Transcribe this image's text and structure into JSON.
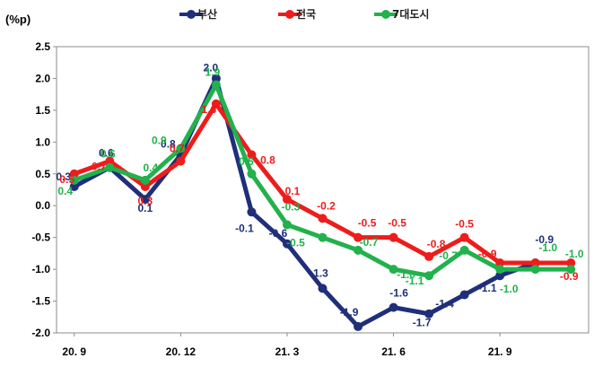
{
  "chart_data": {
    "type": "line",
    "unit_label": "(%p)",
    "x": [
      "20.9",
      "20.10",
      "20.11",
      "20.12",
      "21.1",
      "21.2",
      "21.3",
      "21.4",
      "21.5",
      "21.6",
      "21.7",
      "21.8",
      "21.9",
      "21.10",
      "21.11"
    ],
    "x_tick_labels": [
      "20. 9",
      "20. 12",
      "21. 3",
      "21. 6",
      "21. 9"
    ],
    "x_tick_index": [
      0,
      3,
      6,
      9,
      12
    ],
    "ylim": [
      -2.0,
      2.5
    ],
    "y_ticks": [
      "2.5",
      "2.0",
      "1.5",
      "1.0",
      "0.5",
      "0.0",
      "-0.5",
      "-1.0",
      "-1.5",
      "-2.0"
    ],
    "legend_position": "top",
    "grid": false,
    "series": [
      {
        "name": "부산",
        "color": "#1f2f7a",
        "values": [
          0.3,
          0.6,
          0.1,
          0.8,
          2.0,
          -0.1,
          -0.6,
          -1.3,
          -1.9,
          -1.6,
          -1.7,
          -1.4,
          -1.1,
          -0.9,
          null
        ],
        "labels": [
          "0.3",
          "0.6",
          "0.1",
          "0.8",
          "2.0",
          "-0.1",
          "-0.6",
          "-1.3",
          "-1.9",
          "-1.6",
          "-1.7",
          "-1.4",
          "-1.1",
          "-0.9",
          ""
        ]
      },
      {
        "name": "전국",
        "color": "#ee1c1c",
        "values": [
          0.5,
          0.7,
          0.3,
          0.7,
          1.6,
          0.8,
          0.1,
          -0.2,
          -0.5,
          -0.5,
          -0.8,
          -0.5,
          -0.9,
          -0.9,
          -0.9
        ],
        "labels": [
          "0.5",
          "0.7",
          "0.3",
          "0.7",
          "1.6",
          "0.8",
          "0.1",
          "-0.2",
          "-0.5",
          "-0.5",
          "-0.8",
          "-0.5",
          "-0.9",
          "",
          "-0.9"
        ]
      },
      {
        "name": "7대도시",
        "color": "#22b14c",
        "values": [
          0.4,
          0.6,
          0.4,
          0.9,
          1.9,
          0.5,
          -0.3,
          -0.5,
          -0.7,
          -1.0,
          -1.1,
          -0.7,
          -1.0,
          -1.0,
          -1.0
        ],
        "labels": [
          "0.4",
          "0.6",
          "0.4",
          "0.9",
          "1.9",
          "0.5",
          "-0.3",
          "-0.5",
          "-0.7",
          "-1.0",
          "-1.1",
          "-0.7",
          "-1.0",
          "-1.0",
          "-1.0"
        ]
      }
    ]
  }
}
